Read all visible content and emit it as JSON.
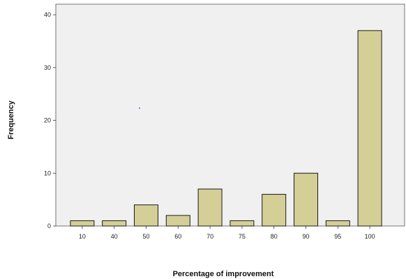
{
  "chart_data": {
    "type": "bar",
    "categories": [
      "10",
      "40",
      "50",
      "60",
      "70",
      "75",
      "80",
      "90",
      "95",
      "100"
    ],
    "values": [
      1,
      1,
      4,
      2,
      7,
      1,
      6,
      10,
      1,
      37
    ],
    "xlabel": "Percentage of improvement",
    "ylabel": "Frequency",
    "ylim": [
      0,
      42
    ],
    "yticks": [
      0,
      10,
      20,
      30,
      40
    ],
    "grid": false,
    "colors": {
      "bar_fill": "#d4cf96",
      "bar_stroke": "#1a1a1a",
      "plot_background": "#f0f0f0",
      "plot_border": "#555555"
    }
  }
}
